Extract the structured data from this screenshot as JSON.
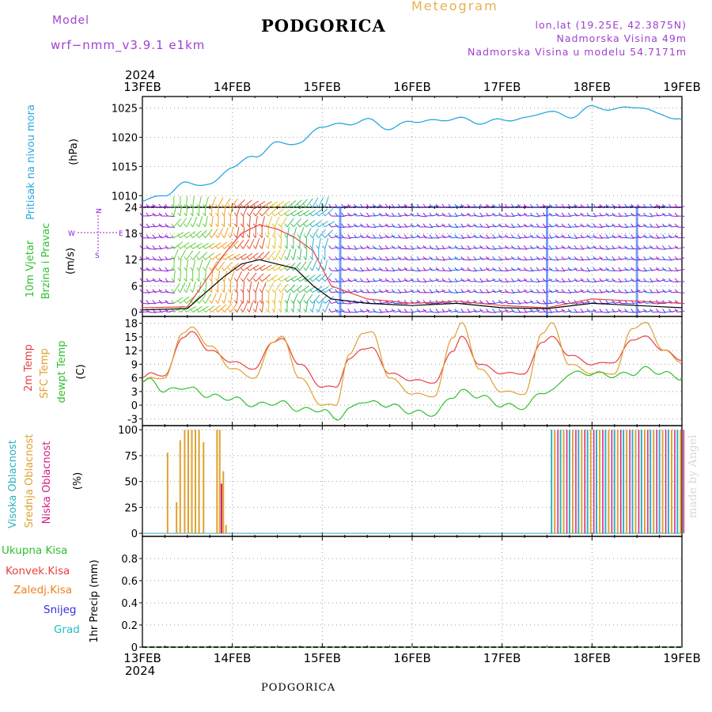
{
  "header": {
    "model_label": "Model",
    "model_name": "wrf−nmm_v3.9.1  e1km",
    "station": "PODGORICA",
    "meteogram": "Meteogram",
    "lonlat": "lon,lat (19.25E, 42.3875N)",
    "elevation": "Nadmorska Visina 49m",
    "model_elevation": "Nadmorska Visina u modelu 54.7171m"
  },
  "footer": {
    "station": "PODGORICA",
    "credit": "made by Angel"
  },
  "time_axis": {
    "year": "2024",
    "days": [
      "13FEB",
      "14FEB",
      "15FEB",
      "16FEB",
      "17FEB",
      "18FEB",
      "19FEB"
    ]
  },
  "colors": {
    "pressure": "#29a8e0",
    "temp": "#e84040",
    "sfc": "#e0a030",
    "dewpt": "#30c030",
    "wind_purple": "#9020d0",
    "wind_blue": "#2060f0",
    "cloud_high": "#30b0c0",
    "cloud_mid": "#e0a030",
    "cloud_low": "#d02080",
    "precip_total": "#30c030",
    "precip_conv": "#e84040",
    "precip_frozen": "#f08020",
    "precip_snow": "#3030e0",
    "precip_grad": "#20c0c0"
  },
  "panels": {
    "pressure": {
      "labels": [
        "Pritisak na nivou mora"
      ],
      "unit": "(hPa)"
    },
    "wind": {
      "labels": [
        "10m Vjetar",
        "Brzina i Pravac"
      ],
      "unit": "(m/s)",
      "compass": {
        "n": "N",
        "s": "S",
        "e": "E",
        "w": "W"
      }
    },
    "temp": {
      "labels": [
        "2m Temp",
        "SFC Temp",
        "dewpt Temp"
      ],
      "unit": "(C)"
    },
    "cloud": {
      "labels": [
        "Visoka Oblacnost",
        "Srednja Oblacnost",
        "Niska Oblacnost"
      ],
      "unit": "(%)"
    },
    "precip": {
      "labels": [
        "Ukupna Kisa",
        "Konvek.Kisa",
        "Zaledj.Kisa",
        "Snijeg",
        "Grad"
      ],
      "unit": "1hr Precip (mm)"
    }
  },
  "chart_data": [
    {
      "type": "line",
      "panel": "pressure",
      "ylabel": "(hPa)",
      "ylim": [
        1008,
        1027
      ],
      "yticks": [
        1010,
        1015,
        1020,
        1025
      ],
      "x": [
        0,
        0.25,
        0.5,
        0.75,
        1,
        1.25,
        1.5,
        1.75,
        2,
        2.25,
        2.5,
        2.75,
        3,
        3.25,
        3.5,
        3.75,
        4,
        4.25,
        4.5,
        4.75,
        5,
        5.25,
        5.5,
        5.75,
        6
      ],
      "series": [
        {
          "name": "Pritisak na nivou mora",
          "values": [
            1009.0,
            1010.2,
            1012.2,
            1011.8,
            1015.0,
            1016.8,
            1019.0,
            1019.0,
            1022.0,
            1022.2,
            1023.0,
            1021.5,
            1022.8,
            1022.8,
            1023.3,
            1022.5,
            1023.0,
            1023.2,
            1024.5,
            1023.5,
            1025.2,
            1024.8,
            1025.3,
            1024.0,
            1023.0
          ]
        }
      ],
      "grid": true
    },
    {
      "type": "line",
      "panel": "wind",
      "ylabel": "(m/s)",
      "ylim": [
        -1,
        24
      ],
      "yticks": [
        0,
        6,
        12,
        18,
        24
      ],
      "x": [
        0,
        0.5,
        0.9,
        1.1,
        1.3,
        1.5,
        1.7,
        1.9,
        2.1,
        2.5,
        3.0,
        3.5,
        4.0,
        4.5,
        5.0,
        5.5,
        6.0
      ],
      "series": [
        {
          "name": "wind speed",
          "values": [
            0.5,
            0.8,
            8,
            11,
            12,
            11,
            10,
            6,
            3,
            2,
            1.5,
            2,
            1,
            0.8,
            2,
            1.5,
            1
          ]
        },
        {
          "name": "wind gust",
          "values": [
            1,
            1.2,
            13,
            18,
            20,
            19,
            17,
            14,
            6,
            3,
            2,
            2.5,
            1.5,
            1,
            3,
            2.5,
            2
          ]
        }
      ],
      "grid": true
    },
    {
      "type": "line",
      "panel": "temp",
      "ylabel": "(C)",
      "ylim": [
        -4.5,
        19.5
      ],
      "yticks": [
        -3,
        0,
        3,
        6,
        9,
        12,
        15,
        18
      ],
      "x": [
        0,
        0.1,
        0.25,
        0.45,
        0.55,
        0.75,
        1,
        1.25,
        1.45,
        1.55,
        1.75,
        2,
        2.15,
        2.3,
        2.45,
        2.55,
        2.75,
        3,
        3.25,
        3.45,
        3.55,
        3.75,
        4,
        4.25,
        4.45,
        4.55,
        4.75,
        5,
        5.25,
        5.45,
        5.6,
        5.8,
        6
      ],
      "series": [
        {
          "name": "2m Temp",
          "values": [
            6,
            7,
            6.5,
            15,
            16,
            12,
            9.5,
            8,
            14,
            14.5,
            9,
            4,
            4,
            10,
            12.5,
            12.5,
            7,
            5.5,
            5,
            12,
            15,
            9,
            7,
            7,
            14,
            15,
            11,
            9,
            9.5,
            14.5,
            15,
            12,
            10
          ]
        },
        {
          "name": "SFC Temp",
          "values": [
            5,
            6,
            6,
            16,
            17,
            13,
            8,
            6,
            14,
            15,
            6,
            0,
            0,
            11,
            16,
            16,
            6,
            2.5,
            2,
            15,
            18,
            8,
            3,
            2.5,
            16,
            18,
            9,
            7,
            7,
            17,
            18,
            12,
            9.5
          ]
        },
        {
          "name": "dewpt Temp",
          "values": [
            5,
            5.5,
            3,
            4,
            3.5,
            2,
            1.5,
            0,
            0.5,
            0.5,
            -1,
            -1,
            -3,
            -1,
            1,
            0.5,
            0,
            -1.5,
            -2,
            2,
            3,
            2,
            0,
            -0.5,
            3,
            3,
            7,
            7,
            6.5,
            7,
            8,
            7,
            6
          ]
        }
      ],
      "grid": true
    },
    {
      "type": "bar",
      "panel": "cloud",
      "ylabel": "(%)",
      "ylim": [
        -3,
        104
      ],
      "yticks": [
        0,
        25,
        50,
        75,
        100
      ],
      "series": [
        {
          "name": "Srednja Oblacnost",
          "x": [
            0.28,
            0.38,
            0.42,
            0.47,
            0.51,
            0.55,
            0.59,
            0.63,
            0.68,
            0.83,
            0.86,
            0.9,
            0.93
          ],
          "values": [
            78,
            30,
            90,
            100,
            100,
            100,
            100,
            100,
            88,
            100,
            100,
            60,
            8
          ]
        },
        {
          "name": "Niska Oblacnost",
          "x": [
            0.88
          ],
          "values": [
            48
          ]
        },
        {
          "name": "Visoka Oblacnost",
          "x": [
            4.55,
            4.65,
            4.75,
            4.85,
            4.95,
            5.05,
            5.15,
            5.25,
            5.35,
            5.45,
            5.55,
            5.65,
            5.75,
            5.85,
            5.95
          ],
          "values": [
            100,
            100,
            100,
            100,
            100,
            100,
            100,
            100,
            100,
            100,
            100,
            100,
            100,
            100,
            100
          ]
        }
      ],
      "grid": true
    },
    {
      "type": "line",
      "panel": "precip",
      "ylabel": "1hr Precip (mm)",
      "ylim": [
        0,
        1
      ],
      "yticks": [
        0,
        0.2,
        0.4,
        0.6,
        0.8
      ],
      "x": [
        0,
        6
      ],
      "series": [
        {
          "name": "Ukupna Kisa",
          "values": [
            0,
            0
          ]
        }
      ],
      "grid": true
    }
  ]
}
